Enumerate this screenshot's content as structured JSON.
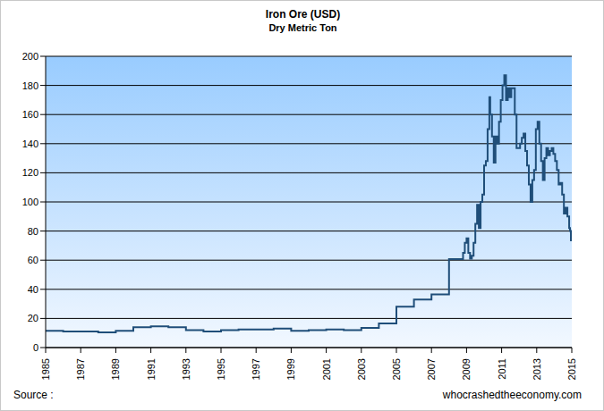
{
  "chart_data": {
    "type": "line",
    "title": "Iron Ore (USD)",
    "subtitle": "Dry Metric Ton",
    "annotations": [
      "Source :",
      "whocrashedtheeconomy.com"
    ],
    "x": [
      1985,
      1986,
      1987,
      1988,
      1989,
      1990,
      1991,
      1992,
      1993,
      1994,
      1995,
      1996,
      1997,
      1998,
      1999,
      2000,
      2001,
      2002,
      2003,
      2004,
      2005,
      2006,
      2007,
      2008,
      2008.8,
      2008.9,
      2009.0,
      2009.1,
      2009.2,
      2009.3,
      2009.4,
      2009.5,
      2009.6,
      2009.7,
      2009.8,
      2009.9,
      2010.0,
      2010.1,
      2010.2,
      2010.3,
      2010.35,
      2010.45,
      2010.55,
      2010.65,
      2010.75,
      2010.85,
      2010.95,
      2011.05,
      2011.15,
      2011.25,
      2011.35,
      2011.45,
      2011.55,
      2011.65,
      2011.75,
      2011.85,
      2011.95,
      2012.05,
      2012.15,
      2012.25,
      2012.35,
      2012.45,
      2012.55,
      2012.65,
      2012.75,
      2012.85,
      2012.95,
      2013.05,
      2013.15,
      2013.25,
      2013.35,
      2013.45,
      2013.55,
      2013.65,
      2013.75,
      2013.85,
      2013.95,
      2014.05,
      2014.15,
      2014.25,
      2014.35,
      2014.45,
      2014.55,
      2014.65,
      2014.75,
      2014.85,
      2014.9,
      2014.95
    ],
    "values": [
      11.5,
      11,
      11,
      10.5,
      11.5,
      14,
      14.5,
      14,
      12,
      11,
      12,
      12.5,
      12.5,
      13,
      11.5,
      12,
      12.5,
      12,
      13.5,
      16.5,
      28,
      33,
      36.5,
      60.8,
      65,
      72,
      75,
      65,
      61,
      63,
      72,
      85,
      98,
      82,
      100,
      105,
      125,
      128,
      150,
      172,
      160,
      145,
      127,
      145,
      140,
      155,
      170,
      180,
      187,
      170,
      178,
      172,
      178,
      178,
      160,
      137,
      137,
      140,
      144,
      147,
      135,
      125,
      112,
      100,
      115,
      122,
      150,
      155,
      140,
      128,
      115,
      130,
      137,
      132,
      135,
      137,
      133,
      128,
      122,
      112,
      113,
      105,
      92,
      96,
      90,
      82,
      80,
      73
    ],
    "color": "#1f4e79",
    "line_style": "step",
    "xlim": [
      1985,
      2015
    ],
    "xticks": [
      1985,
      1987,
      1989,
      1991,
      1993,
      1995,
      1997,
      1999,
      2001,
      2003,
      2005,
      2007,
      2009,
      2011,
      2013,
      2015
    ],
    "ylim": [
      0,
      200
    ],
    "yticks": [
      0,
      20,
      40,
      60,
      80,
      100,
      120,
      140,
      160,
      180,
      200
    ],
    "grid": true
  }
}
